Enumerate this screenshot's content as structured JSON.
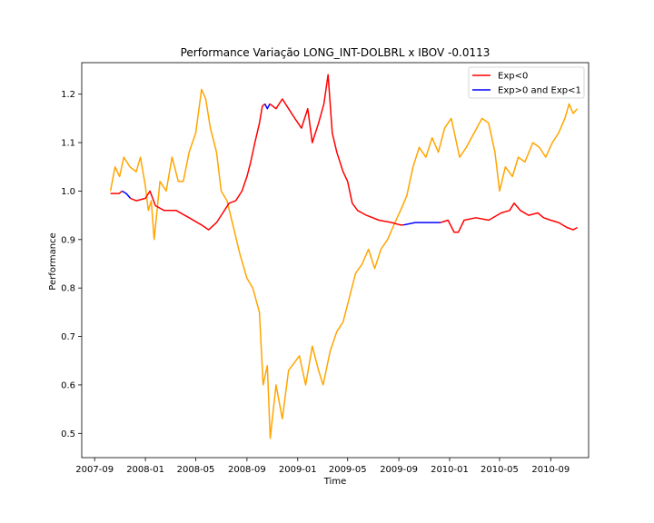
{
  "chart_data": {
    "type": "line",
    "title": "Performance Variação LONG_INT-DOLBRL x IBOV -0.0113",
    "xlabel": "Time",
    "ylabel": "Performance",
    "x_ticks": [
      "2007-09",
      "2008-01",
      "2008-05",
      "2008-09",
      "2009-01",
      "2009-05",
      "2009-09",
      "2010-01",
      "2010-05",
      "2010-09"
    ],
    "y_ticks": [
      "0.5",
      "0.6",
      "0.7",
      "0.8",
      "0.9",
      "1.0",
      "1.1",
      "1.2"
    ],
    "xlim": [
      "2007-08-01",
      "2010-12-01"
    ],
    "ylim": [
      0.45,
      1.265
    ],
    "grid": false,
    "legend_position": "top-right",
    "legend": [
      {
        "label": "Exp<0",
        "color": "#ff0000"
      },
      {
        "label": "Exp>0 and Exp<1",
        "color": "#0000ff"
      }
    ],
    "series": [
      {
        "color": "#ffa500",
        "points": [
          [
            "2007-10-09",
            1.0
          ],
          [
            "2007-10-20",
            1.05
          ],
          [
            "2007-10-31",
            1.03
          ],
          [
            "2007-11-10",
            1.07
          ],
          [
            "2007-11-25",
            1.05
          ],
          [
            "2007-12-10",
            1.04
          ],
          [
            "2007-12-20",
            1.07
          ],
          [
            "2008-01-01",
            1.01
          ],
          [
            "2008-01-08",
            0.96
          ],
          [
            "2008-01-15",
            0.98
          ],
          [
            "2008-01-22",
            0.9
          ],
          [
            "2008-02-05",
            1.02
          ],
          [
            "2008-02-20",
            1.0
          ],
          [
            "2008-03-05",
            1.07
          ],
          [
            "2008-03-20",
            1.02
          ],
          [
            "2008-04-01",
            1.02
          ],
          [
            "2008-04-15",
            1.08
          ],
          [
            "2008-05-01",
            1.12
          ],
          [
            "2008-05-15",
            1.21
          ],
          [
            "2008-05-25",
            1.19
          ],
          [
            "2008-06-05",
            1.13
          ],
          [
            "2008-06-20",
            1.08
          ],
          [
            "2008-07-01",
            1.0
          ],
          [
            "2008-07-15",
            0.98
          ],
          [
            "2008-08-01",
            0.92
          ],
          [
            "2008-08-15",
            0.87
          ],
          [
            "2008-09-01",
            0.82
          ],
          [
            "2008-09-15",
            0.8
          ],
          [
            "2008-10-01",
            0.75
          ],
          [
            "2008-10-10",
            0.6
          ],
          [
            "2008-10-20",
            0.64
          ],
          [
            "2008-10-27",
            0.49
          ],
          [
            "2008-11-10",
            0.6
          ],
          [
            "2008-11-25",
            0.53
          ],
          [
            "2008-12-10",
            0.63
          ],
          [
            "2009-01-05",
            0.66
          ],
          [
            "2009-01-20",
            0.6
          ],
          [
            "2009-02-05",
            0.68
          ],
          [
            "2009-02-20",
            0.63
          ],
          [
            "2009-03-03",
            0.6
          ],
          [
            "2009-03-20",
            0.67
          ],
          [
            "2009-04-05",
            0.71
          ],
          [
            "2009-04-20",
            0.73
          ],
          [
            "2009-05-05",
            0.78
          ],
          [
            "2009-05-20",
            0.83
          ],
          [
            "2009-06-05",
            0.85
          ],
          [
            "2009-06-20",
            0.88
          ],
          [
            "2009-07-05",
            0.84
          ],
          [
            "2009-07-20",
            0.88
          ],
          [
            "2009-08-05",
            0.9
          ],
          [
            "2009-08-20",
            0.93
          ],
          [
            "2009-09-05",
            0.96
          ],
          [
            "2009-09-20",
            0.99
          ],
          [
            "2009-10-05",
            1.05
          ],
          [
            "2009-10-20",
            1.09
          ],
          [
            "2009-11-05",
            1.07
          ],
          [
            "2009-11-20",
            1.11
          ],
          [
            "2009-12-05",
            1.08
          ],
          [
            "2009-12-20",
            1.13
          ],
          [
            "2010-01-05",
            1.15
          ],
          [
            "2010-01-25",
            1.07
          ],
          [
            "2010-02-10",
            1.09
          ],
          [
            "2010-03-01",
            1.12
          ],
          [
            "2010-03-20",
            1.15
          ],
          [
            "2010-04-05",
            1.14
          ],
          [
            "2010-04-20",
            1.08
          ],
          [
            "2010-05-01",
            1.0
          ],
          [
            "2010-05-15",
            1.05
          ],
          [
            "2010-06-01",
            1.03
          ],
          [
            "2010-06-15",
            1.07
          ],
          [
            "2010-07-01",
            1.06
          ],
          [
            "2010-07-20",
            1.1
          ],
          [
            "2010-08-05",
            1.09
          ],
          [
            "2010-08-20",
            1.07
          ],
          [
            "2010-09-05",
            1.1
          ],
          [
            "2010-09-20",
            1.12
          ],
          [
            "2010-10-05",
            1.15
          ],
          [
            "2010-10-15",
            1.18
          ],
          [
            "2010-10-25",
            1.16
          ],
          [
            "2010-11-04",
            1.17
          ]
        ]
      }
    ],
    "exposure_line": {
      "segments": [
        {
          "color": "#ff0000",
          "points": [
            [
              "2007-10-09",
              0.995
            ],
            [
              "2007-10-30",
              0.995
            ],
            [
              "2007-11-06",
              1.0
            ]
          ]
        },
        {
          "color": "#0000ff",
          "points": [
            [
              "2007-11-06",
              1.0
            ],
            [
              "2007-11-16",
              0.995
            ],
            [
              "2007-11-26",
              0.985
            ]
          ]
        },
        {
          "color": "#ff0000",
          "points": [
            [
              "2007-11-26",
              0.985
            ],
            [
              "2007-12-10",
              0.98
            ],
            [
              "2008-01-01",
              0.985
            ],
            [
              "2008-01-12",
              1.0
            ],
            [
              "2008-01-25",
              0.97
            ],
            [
              "2008-02-15",
              0.96
            ],
            [
              "2008-03-15",
              0.96
            ],
            [
              "2008-04-15",
              0.945
            ],
            [
              "2008-05-15",
              0.93
            ],
            [
              "2008-06-01",
              0.92
            ],
            [
              "2008-06-20",
              0.935
            ],
            [
              "2008-07-05",
              0.955
            ],
            [
              "2008-07-20",
              0.975
            ],
            [
              "2008-08-05",
              0.98
            ],
            [
              "2008-08-20",
              1.0
            ],
            [
              "2008-09-01",
              1.03
            ],
            [
              "2008-09-10",
              1.06
            ],
            [
              "2008-09-20",
              1.1
            ],
            [
              "2008-10-01",
              1.14
            ],
            [
              "2008-10-08",
              1.175
            ],
            [
              "2008-10-14",
              1.18
            ]
          ]
        },
        {
          "color": "#0000ff",
          "points": [
            [
              "2008-10-14",
              1.18
            ],
            [
              "2008-10-20",
              1.17
            ],
            [
              "2008-10-26",
              1.18
            ]
          ]
        },
        {
          "color": "#ff0000",
          "points": [
            [
              "2008-10-26",
              1.18
            ],
            [
              "2008-11-10",
              1.17
            ],
            [
              "2008-11-25",
              1.19
            ],
            [
              "2008-12-10",
              1.17
            ],
            [
              "2008-12-25",
              1.15
            ],
            [
              "2009-01-10",
              1.13
            ],
            [
              "2009-01-25",
              1.17
            ],
            [
              "2009-02-05",
              1.1
            ],
            [
              "2009-02-20",
              1.14
            ],
            [
              "2009-03-05",
              1.18
            ],
            [
              "2009-03-15",
              1.24
            ],
            [
              "2009-03-25",
              1.12
            ],
            [
              "2009-04-05",
              1.08
            ],
            [
              "2009-04-20",
              1.04
            ],
            [
              "2009-05-01",
              1.02
            ],
            [
              "2009-05-12",
              0.975
            ],
            [
              "2009-05-25",
              0.96
            ],
            [
              "2009-06-15",
              0.95
            ],
            [
              "2009-07-15",
              0.94
            ],
            [
              "2009-08-15",
              0.935
            ],
            [
              "2009-09-05",
              0.93
            ],
            [
              "2009-09-12",
              0.93
            ]
          ]
        },
        {
          "color": "#0000ff",
          "points": [
            [
              "2009-09-12",
              0.93
            ],
            [
              "2009-10-10",
              0.935
            ],
            [
              "2009-11-10",
              0.935
            ],
            [
              "2009-12-10",
              0.935
            ]
          ]
        },
        {
          "color": "#ff0000",
          "points": [
            [
              "2009-12-10",
              0.935
            ],
            [
              "2009-12-28",
              0.94
            ],
            [
              "2010-01-12",
              0.915
            ],
            [
              "2010-01-22",
              0.915
            ],
            [
              "2010-02-05",
              0.94
            ],
            [
              "2010-03-05",
              0.945
            ],
            [
              "2010-04-05",
              0.94
            ],
            [
              "2010-05-05",
              0.955
            ],
            [
              "2010-05-25",
              0.96
            ],
            [
              "2010-06-05",
              0.975
            ],
            [
              "2010-06-20",
              0.96
            ],
            [
              "2010-07-10",
              0.95
            ],
            [
              "2010-08-01",
              0.955
            ],
            [
              "2010-08-15",
              0.945
            ],
            [
              "2010-09-01",
              0.94
            ],
            [
              "2010-09-20",
              0.935
            ],
            [
              "2010-10-10",
              0.925
            ],
            [
              "2010-10-25",
              0.92
            ],
            [
              "2010-11-04",
              0.925
            ]
          ]
        }
      ]
    }
  }
}
